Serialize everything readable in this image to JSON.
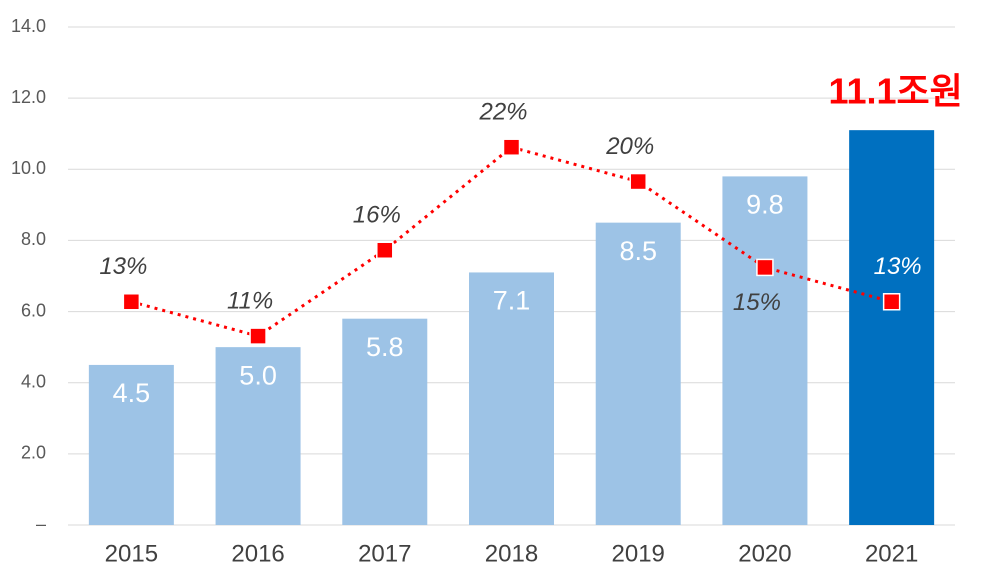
{
  "chart_data": {
    "type": "bar",
    "categories": [
      "2015",
      "2016",
      "2017",
      "2018",
      "2019",
      "2020",
      "2021"
    ],
    "series": [
      {
        "type": "bar",
        "values": [
          4.5,
          5.0,
          5.8,
          7.1,
          8.5,
          9.8,
          11.1
        ],
        "value_labels": [
          "4.5",
          "5.0",
          "5.8",
          "7.1",
          "8.5",
          "9.8",
          null
        ],
        "colors": [
          "#9dc3e6",
          "#9dc3e6",
          "#9dc3e6",
          "#9dc3e6",
          "#9dc3e6",
          "#9dc3e6",
          "#0070c0"
        ]
      },
      {
        "type": "line",
        "axis": "y2",
        "color": "#ff0000",
        "values": [
          13,
          11,
          16,
          22,
          20,
          15,
          13
        ],
        "value_labels": [
          "13%",
          "11%",
          "16%",
          "22%",
          "20%",
          "15%",
          "13%"
        ]
      }
    ],
    "annotation": "11.1조원",
    "ylim": [
      0,
      14
    ],
    "yticks": [
      {
        "value": 0,
        "label": "–"
      },
      {
        "value": 2,
        "label": "2.0"
      },
      {
        "value": 4,
        "label": "4.0"
      },
      {
        "value": 6,
        "label": "6.0"
      },
      {
        "value": 8,
        "label": "8.0"
      },
      {
        "value": 10,
        "label": "10.0"
      },
      {
        "value": 12,
        "label": "12.0"
      },
      {
        "value": 14,
        "label": "14.0"
      }
    ],
    "y2lim": [
      0,
      29
    ],
    "grid": true
  }
}
